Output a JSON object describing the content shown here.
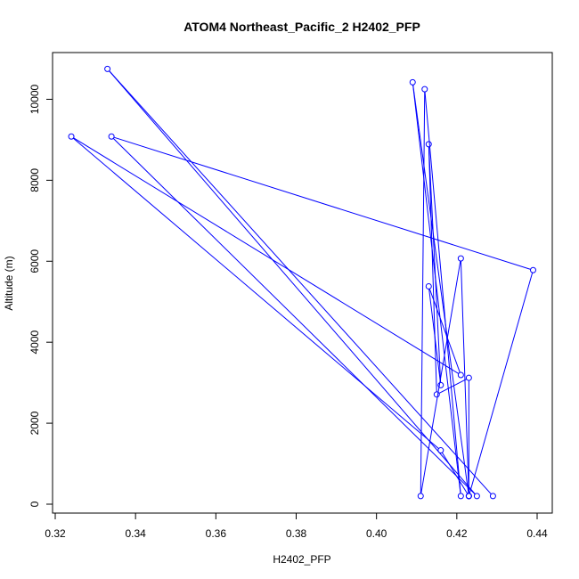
{
  "chart_data": {
    "type": "line",
    "title": "ATOM4 Northeast_Pacific_2 H2402_PFP",
    "xlabel": "H2402_PFP",
    "ylabel": "Altitude (m)",
    "xlim": [
      0.32,
      0.44
    ],
    "ylim": [
      0,
      11000
    ],
    "xticks": [
      0.32,
      0.34,
      0.36,
      0.38,
      0.4,
      0.42,
      0.44
    ],
    "xtick_labels": [
      "0.32",
      "0.34",
      "0.36",
      "0.38",
      "0.40",
      "0.42",
      "0.44"
    ],
    "yticks": [
      0,
      2000,
      4000,
      6000,
      8000,
      10000
    ],
    "ytick_labels": [
      "0",
      "2000",
      "4000",
      "6000",
      "8000",
      "10000"
    ],
    "grid": false,
    "series": [
      {
        "color": "#0000ff",
        "points": [
          {
            "x": 0.429,
            "y": 200
          },
          {
            "x": 0.333,
            "y": 10750
          },
          {
            "x": 0.425,
            "y": 200
          },
          {
            "x": 0.334,
            "y": 9080
          },
          {
            "x": 0.439,
            "y": 5780
          },
          {
            "x": 0.423,
            "y": 200
          },
          {
            "x": 0.421,
            "y": 6070
          },
          {
            "x": 0.411,
            "y": 200
          },
          {
            "x": 0.412,
            "y": 10250
          },
          {
            "x": 0.421,
            "y": 200
          },
          {
            "x": 0.409,
            "y": 10420
          },
          {
            "x": 0.423,
            "y": 200
          },
          {
            "x": 0.416,
            "y": 1330
          },
          {
            "x": 0.324,
            "y": 9080
          },
          {
            "x": 0.421,
            "y": 3190
          },
          {
            "x": 0.413,
            "y": 5380
          },
          {
            "x": 0.416,
            "y": 2940
          },
          {
            "x": 0.413,
            "y": 8890
          },
          {
            "x": 0.415,
            "y": 2710
          },
          {
            "x": 0.423,
            "y": 3120
          },
          {
            "x": 0.423,
            "y": 200
          }
        ]
      }
    ]
  }
}
